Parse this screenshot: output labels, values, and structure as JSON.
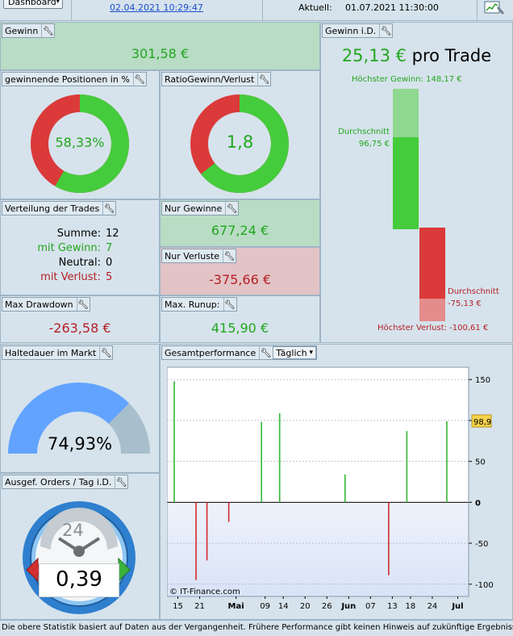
{
  "topbar": {
    "dashboard_label": "Dashboard",
    "from_date": "02.04.2021 10:29:47",
    "current_label": "Aktuell:",
    "current_date": "01.07.2021 11:30:00"
  },
  "gewinn": {
    "title": "Gewinn",
    "value": "301,58 €"
  },
  "gewinn_id": {
    "title": "Gewinn i.D.",
    "value": "25,13 €",
    "suffix": "pro Trade",
    "max_gain_label": "Höchster Gewinn: 148,17 €",
    "avg_gain_label1": "Durchschnitt",
    "avg_gain_label2": "96,75 €",
    "avg_loss_label1": "Durchschnitt",
    "avg_loss_label2": "-75,13 €",
    "max_loss_label": "Höchster Verlust: -100,61 €"
  },
  "win_positions": {
    "title": "gewinnende Positionen in %",
    "value": "58,33%",
    "fraction": 0.5833
  },
  "ratio": {
    "title": "RatioGewinn/Verlust",
    "value": "1,8",
    "fraction": 0.643
  },
  "distribution": {
    "title": "Verteilung der Trades",
    "rows": [
      {
        "label": "Summe:",
        "value": "12"
      },
      {
        "label": "mit Gewinn:",
        "value": "7"
      },
      {
        "label": "Neutral:",
        "value": "0"
      },
      {
        "label": "mit Verlust:",
        "value": "5"
      }
    ]
  },
  "only_gains": {
    "title": "Nur Gewinne",
    "value": "677,24 €"
  },
  "only_losses": {
    "title": "Nur Verluste",
    "value": "-375,66 €"
  },
  "max_drawdown": {
    "title": "Max Drawdown",
    "value": "-263,58 €"
  },
  "max_runup": {
    "title": "Max. Runup:",
    "value": "415,90 €"
  },
  "holding": {
    "title": "Haltedauer im Markt",
    "value": "74,93%",
    "fraction": 0.7493
  },
  "orders": {
    "title": "Ausgef. Orders / Tag i.D.",
    "value": "0,39",
    "clock_number": "24"
  },
  "performance": {
    "title": "Gesamtperformance",
    "dropdown": "Täglich",
    "copyright": "© IT-Finance.com",
    "last_value": "98,9"
  },
  "footer": "Die obere Statistik basiert auf Daten aus der Vergangenheit. Frühere Performance gibt keinen Hinweis auf zukünftige Ergebnisse.",
  "chart_data": {
    "type": "bar",
    "x_tick_labels": [
      "15",
      "21",
      "Mai",
      "09",
      "14",
      "20",
      "26",
      "Jun",
      "07",
      "13",
      "18",
      "24",
      "Jul"
    ],
    "y_ticks": [
      150,
      100,
      50,
      0,
      -50,
      -100
    ],
    "ylim": [
      -115,
      165
    ],
    "xlim": [
      "2021-04-12",
      "2021-07-04"
    ],
    "points": [
      {
        "x": "2021-04-14",
        "y": 148
      },
      {
        "x": "2021-04-20",
        "y": -95
      },
      {
        "x": "2021-04-23",
        "y": -71
      },
      {
        "x": "2021-04-29",
        "y": -24
      },
      {
        "x": "2021-05-08",
        "y": 98
      },
      {
        "x": "2021-05-13",
        "y": 109
      },
      {
        "x": "2021-05-31",
        "y": 34
      },
      {
        "x": "2021-06-12",
        "y": -89
      },
      {
        "x": "2021-06-17",
        "y": 87
      },
      {
        "x": "2021-06-28",
        "y": 99
      }
    ],
    "colors": {
      "positive": "#33b833",
      "negative": "#d12a2a"
    }
  }
}
